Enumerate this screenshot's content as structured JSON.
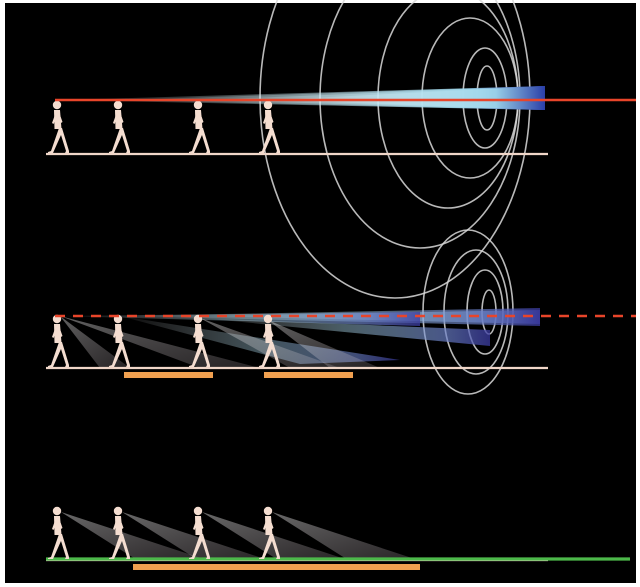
{
  "figure": {
    "background_color": "#000000",
    "frame_color": "#ffffff",
    "walker_color": "#f4ddd0",
    "ground_color": "#f0d6c8",
    "eye_line_color": "#e8452a",
    "footprint_color": "#f0a050",
    "near_ground_color": "#4cb84a",
    "ripple_color": "#d9d9d9"
  },
  "panels": [
    {
      "id": "top",
      "walker_count": 4,
      "eye_line_style": "solid",
      "has_gaze_to_ground": false,
      "has_ripples": true
    },
    {
      "id": "middle",
      "walker_count": 4,
      "eye_line_style": "dashed",
      "has_gaze_to_ground": true,
      "footprint_bars": 2,
      "has_ripples": true
    },
    {
      "id": "bottom",
      "walker_count": 4,
      "eye_line_style": "none",
      "has_gaze_to_ground": true,
      "footprint_bars": 1,
      "has_green_ground": true,
      "has_ripples": false
    }
  ]
}
